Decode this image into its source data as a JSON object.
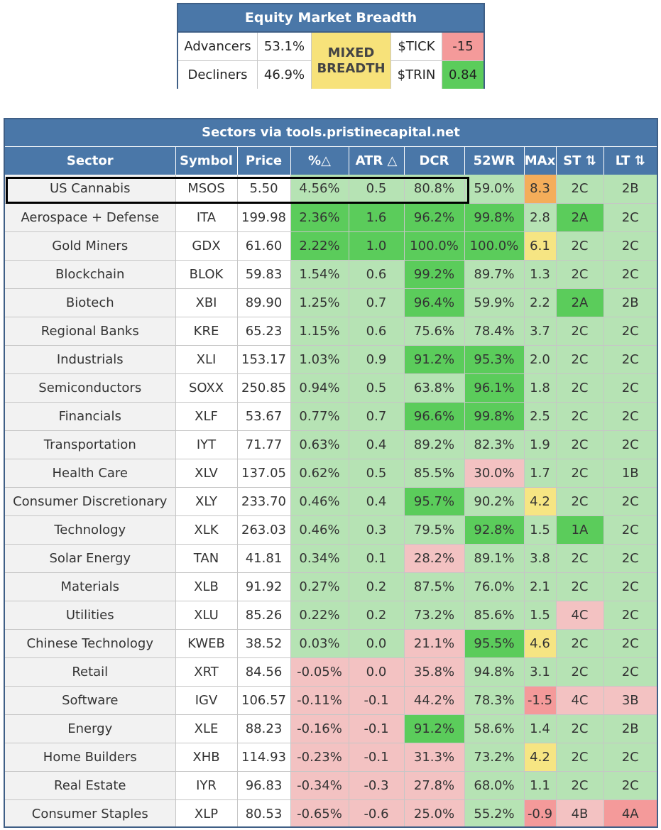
{
  "breadth": {
    "title": "Equity Market Breadth",
    "advancers_label": "Advancers",
    "advancers_value": "53.1%",
    "decliners_label": "Decliners",
    "decliners_value": "46.9%",
    "status_line1": "MIXED",
    "status_line2": "BREADTH",
    "tick_label": "$TICK",
    "tick_value": "-15",
    "trin_label": "$TRIN",
    "trin_value": "0.84"
  },
  "sectors": {
    "title": "Sectors via tools.pristinecapital.net",
    "columns": [
      "Sector",
      "Symbol",
      "Price",
      "%△",
      "ATR △",
      "DCR",
      "52WR",
      "MAx",
      "ST ⇅",
      "LT ⇅"
    ],
    "rows": [
      {
        "sector": "US Cannabis",
        "symbol": "MSOS",
        "price": "5.50",
        "pct": "4.56%",
        "atr": "0.5",
        "dcr": "80.8%",
        "wr52": "59.0%",
        "max": "8.3",
        "st": "2C",
        "lt": "2B"
      },
      {
        "sector": "Aerospace + Defense",
        "symbol": "ITA",
        "price": "199.98",
        "pct": "2.36%",
        "atr": "1.6",
        "dcr": "96.2%",
        "wr52": "99.8%",
        "max": "2.8",
        "st": "2A",
        "lt": "2C"
      },
      {
        "sector": "Gold Miners",
        "symbol": "GDX",
        "price": "61.60",
        "pct": "2.22%",
        "atr": "1.0",
        "dcr": "100.0%",
        "wr52": "100.0%",
        "max": "6.1",
        "st": "2C",
        "lt": "2C"
      },
      {
        "sector": "Blockchain",
        "symbol": "BLOK",
        "price": "59.83",
        "pct": "1.54%",
        "atr": "0.6",
        "dcr": "99.2%",
        "wr52": "89.7%",
        "max": "1.3",
        "st": "2C",
        "lt": "2C"
      },
      {
        "sector": "Biotech",
        "symbol": "XBI",
        "price": "89.90",
        "pct": "1.25%",
        "atr": "0.7",
        "dcr": "96.4%",
        "wr52": "59.9%",
        "max": "2.2",
        "st": "2A",
        "lt": "2B"
      },
      {
        "sector": "Regional Banks",
        "symbol": "KRE",
        "price": "65.23",
        "pct": "1.15%",
        "atr": "0.6",
        "dcr": "75.6%",
        "wr52": "78.4%",
        "max": "3.7",
        "st": "2C",
        "lt": "2C"
      },
      {
        "sector": "Industrials",
        "symbol": "XLI",
        "price": "153.17",
        "pct": "1.03%",
        "atr": "0.9",
        "dcr": "91.2%",
        "wr52": "95.3%",
        "max": "2.0",
        "st": "2C",
        "lt": "2C"
      },
      {
        "sector": "Semiconductors",
        "symbol": "SOXX",
        "price": "250.85",
        "pct": "0.94%",
        "atr": "0.5",
        "dcr": "63.8%",
        "wr52": "96.1%",
        "max": "1.8",
        "st": "2C",
        "lt": "2C"
      },
      {
        "sector": "Financials",
        "symbol": "XLF",
        "price": "53.67",
        "pct": "0.77%",
        "atr": "0.7",
        "dcr": "96.6%",
        "wr52": "99.8%",
        "max": "2.5",
        "st": "2C",
        "lt": "2C"
      },
      {
        "sector": "Transportation",
        "symbol": "IYT",
        "price": "71.77",
        "pct": "0.63%",
        "atr": "0.4",
        "dcr": "89.2%",
        "wr52": "82.3%",
        "max": "1.9",
        "st": "2C",
        "lt": "2C"
      },
      {
        "sector": "Health Care",
        "symbol": "XLV",
        "price": "137.05",
        "pct": "0.62%",
        "atr": "0.5",
        "dcr": "85.5%",
        "wr52": "30.0%",
        "max": "1.7",
        "st": "2C",
        "lt": "1B"
      },
      {
        "sector": "Consumer Discretionary",
        "symbol": "XLY",
        "price": "233.70",
        "pct": "0.46%",
        "atr": "0.4",
        "dcr": "95.7%",
        "wr52": "90.2%",
        "max": "4.2",
        "st": "2C",
        "lt": "2C"
      },
      {
        "sector": "Technology",
        "symbol": "XLK",
        "price": "263.03",
        "pct": "0.46%",
        "atr": "0.3",
        "dcr": "79.5%",
        "wr52": "92.8%",
        "max": "1.5",
        "st": "1A",
        "lt": "2C"
      },
      {
        "sector": "Solar Energy",
        "symbol": "TAN",
        "price": "41.81",
        "pct": "0.34%",
        "atr": "0.1",
        "dcr": "28.2%",
        "wr52": "89.1%",
        "max": "3.8",
        "st": "2C",
        "lt": "2C"
      },
      {
        "sector": "Materials",
        "symbol": "XLB",
        "price": "91.92",
        "pct": "0.27%",
        "atr": "0.2",
        "dcr": "87.5%",
        "wr52": "76.0%",
        "max": "2.1",
        "st": "2C",
        "lt": "2C"
      },
      {
        "sector": "Utilities",
        "symbol": "XLU",
        "price": "85.26",
        "pct": "0.22%",
        "atr": "0.2",
        "dcr": "73.2%",
        "wr52": "85.6%",
        "max": "1.5",
        "st": "4C",
        "lt": "2C"
      },
      {
        "sector": "Chinese Technology",
        "symbol": "KWEB",
        "price": "38.52",
        "pct": "0.03%",
        "atr": "0.0",
        "dcr": "21.1%",
        "wr52": "95.5%",
        "max": "4.6",
        "st": "2C",
        "lt": "2C"
      },
      {
        "sector": "Retail",
        "symbol": "XRT",
        "price": "84.56",
        "pct": "-0.05%",
        "atr": "0.0",
        "dcr": "35.8%",
        "wr52": "94.8%",
        "max": "3.1",
        "st": "2C",
        "lt": "2C"
      },
      {
        "sector": "Software",
        "symbol": "IGV",
        "price": "106.57",
        "pct": "-0.11%",
        "atr": "-0.1",
        "dcr": "44.2%",
        "wr52": "78.3%",
        "max": "-1.5",
        "st": "4C",
        "lt": "3B"
      },
      {
        "sector": "Energy",
        "symbol": "XLE",
        "price": "88.23",
        "pct": "-0.16%",
        "atr": "-0.1",
        "dcr": "91.2%",
        "wr52": "58.6%",
        "max": "1.4",
        "st": "2C",
        "lt": "2B"
      },
      {
        "sector": "Home Builders",
        "symbol": "XHB",
        "price": "114.93",
        "pct": "-0.23%",
        "atr": "-0.1",
        "dcr": "31.3%",
        "wr52": "73.2%",
        "max": "4.2",
        "st": "2C",
        "lt": "2C"
      },
      {
        "sector": "Real Estate",
        "symbol": "IYR",
        "price": "96.83",
        "pct": "-0.34%",
        "atr": "-0.3",
        "dcr": "27.8%",
        "wr52": "68.0%",
        "max": "1.1",
        "st": "2C",
        "lt": "2C"
      },
      {
        "sector": "Consumer Staples",
        "symbol": "XLP",
        "price": "80.53",
        "pct": "-0.65%",
        "atr": "-0.6",
        "dcr": "25.0%",
        "wr52": "55.2%",
        "max": "-0.9",
        "st": "4B",
        "lt": "4A"
      }
    ]
  },
  "colors": {
    "header_blue": "#4a77a8",
    "green_strong": "#5bcc5b",
    "green_light": "#b6e3b4",
    "red_light": "#f3c2c2",
    "red_strong": "#f49a9a",
    "yellow": "#f6e583",
    "orange": "#f4ad5a"
  }
}
